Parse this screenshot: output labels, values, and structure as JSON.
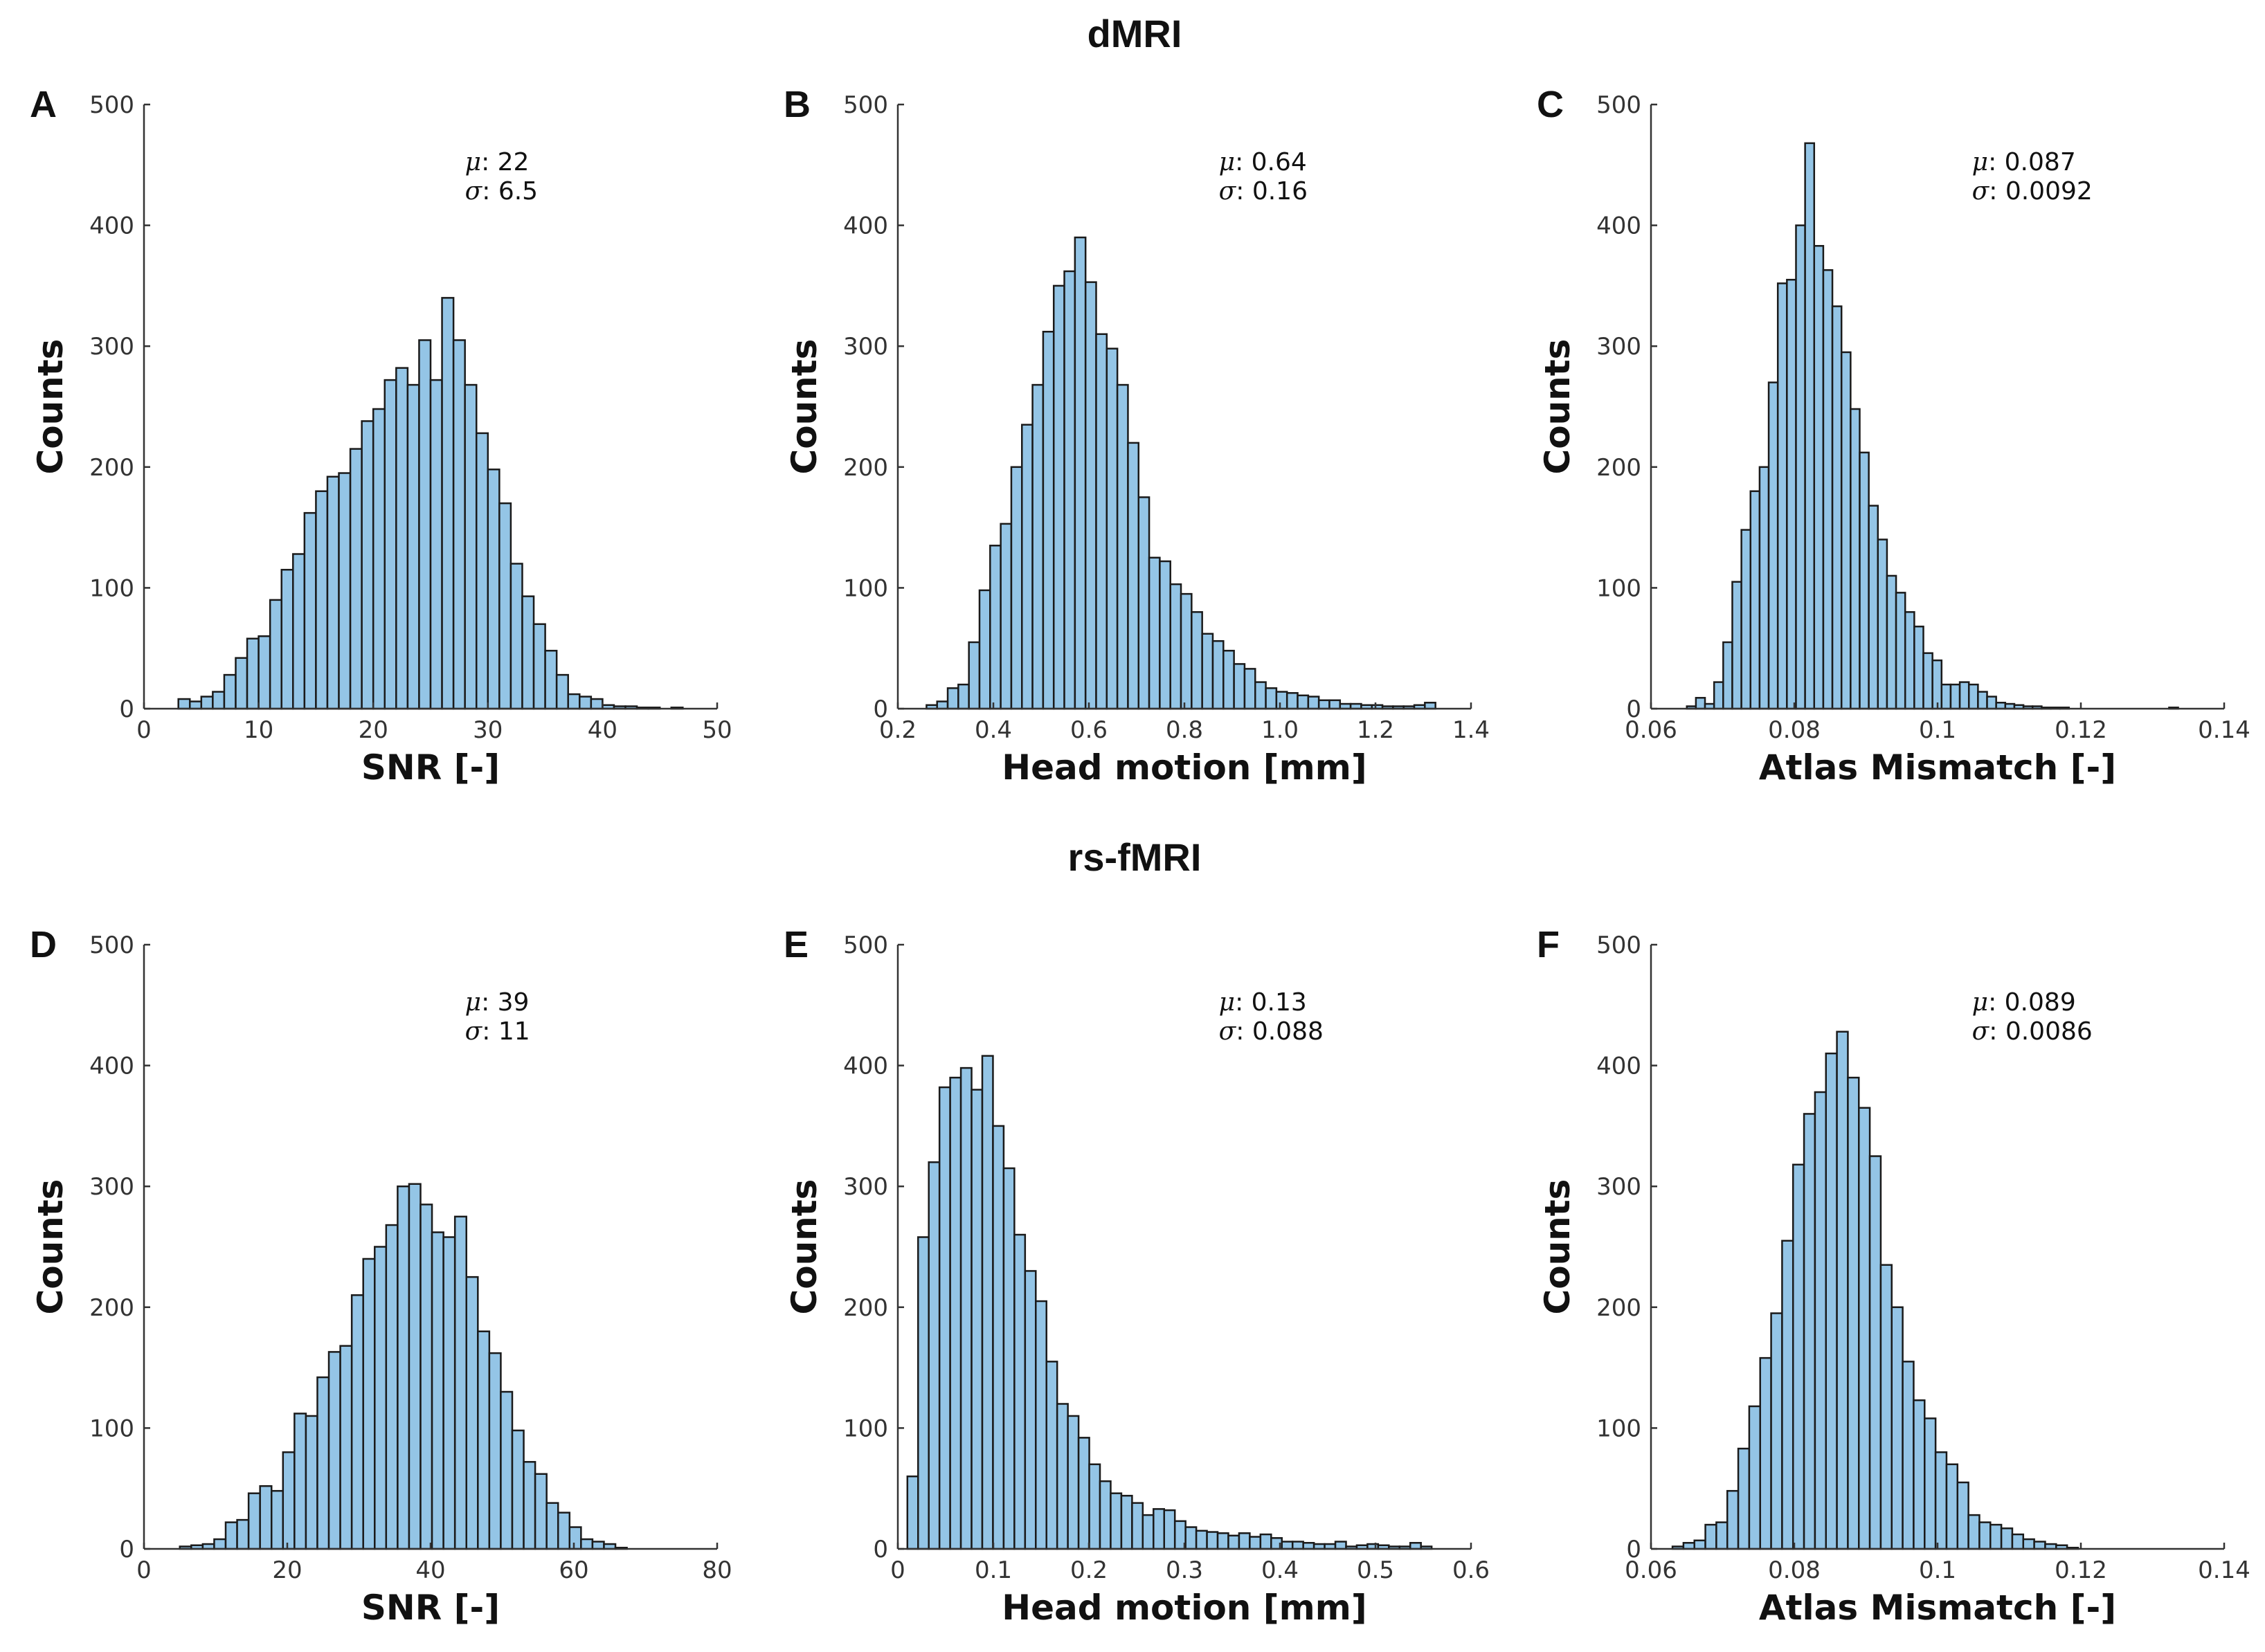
{
  "sections": {
    "top": "dMRI",
    "bottom": "rs-fMRI"
  },
  "chart_data": [
    {
      "id": "A",
      "type": "bar",
      "panel_label": "A",
      "xlabel": "SNR [-]",
      "ylabel": "Counts",
      "xlim": [
        0,
        50
      ],
      "ylim": [
        0,
        500
      ],
      "xticks": [
        0,
        10,
        20,
        30,
        40,
        50
      ],
      "xticklabels": [
        "0",
        "10",
        "20",
        "30",
        "40",
        "50"
      ],
      "yticks": [
        0,
        100,
        200,
        300,
        400,
        500
      ],
      "yticklabels": [
        "0",
        "100",
        "200",
        "300",
        "400",
        "500"
      ],
      "mu_label": "μ",
      "mu_value": "22",
      "sigma_label": "σ",
      "sigma_value": "6.5",
      "bin_start": 3,
      "bin_width": 1,
      "values": [
        8,
        6,
        10,
        14,
        28,
        42,
        58,
        60,
        90,
        115,
        128,
        162,
        180,
        192,
        195,
        215,
        238,
        248,
        272,
        282,
        268,
        305,
        272,
        340,
        305,
        268,
        228,
        198,
        170,
        120,
        93,
        70,
        48,
        28,
        12,
        10,
        8,
        3,
        2,
        2,
        1,
        1,
        0,
        1
      ]
    },
    {
      "id": "B",
      "type": "bar",
      "panel_label": "B",
      "xlabel": "Head motion [mm]",
      "ylabel": "Counts",
      "xlim": [
        0.2,
        1.4
      ],
      "ylim": [
        0,
        500
      ],
      "xticks": [
        0.2,
        0.4,
        0.6,
        0.8,
        1.0,
        1.2,
        1.4
      ],
      "xticklabels": [
        "0.2",
        "0.4",
        "0.6",
        "0.8",
        "1.0",
        "1.2",
        "1.4"
      ],
      "yticks": [
        0,
        100,
        200,
        300,
        400,
        500
      ],
      "yticklabels": [
        "0",
        "100",
        "200",
        "300",
        "400",
        "500"
      ],
      "mu_label": "μ",
      "mu_value": "0.64",
      "sigma_label": "σ",
      "sigma_value": "0.16",
      "bin_start": 0.26,
      "bin_width": 0.0222,
      "values": [
        3,
        6,
        17,
        20,
        55,
        98,
        135,
        153,
        200,
        235,
        268,
        312,
        350,
        362,
        390,
        353,
        310,
        298,
        268,
        220,
        175,
        125,
        122,
        103,
        95,
        80,
        62,
        56,
        48,
        37,
        33,
        22,
        17,
        14,
        13,
        11,
        10,
        7,
        7,
        4,
        4,
        3,
        3,
        2,
        2,
        2,
        3,
        5
      ]
    },
    {
      "id": "C",
      "type": "bar",
      "panel_label": "C",
      "xlabel": "Atlas Mismatch [-]",
      "ylabel": "Counts",
      "xlim": [
        0.06,
        0.14
      ],
      "ylim": [
        0,
        500
      ],
      "xticks": [
        0.06,
        0.08,
        0.1,
        0.12,
        0.14
      ],
      "xticklabels": [
        "0.06",
        "0.08",
        "0.1",
        "0.12",
        "0.14"
      ],
      "yticks": [
        0,
        100,
        200,
        300,
        400,
        500
      ],
      "yticklabels": [
        "0",
        "100",
        "200",
        "300",
        "400",
        "500"
      ],
      "mu_label": "μ",
      "mu_value": "0.087",
      "sigma_label": "σ",
      "sigma_value": "0.0092",
      "bin_start": 0.065,
      "bin_width": 0.00127,
      "values": [
        2,
        9,
        4,
        22,
        55,
        105,
        148,
        180,
        200,
        270,
        352,
        355,
        400,
        468,
        383,
        363,
        333,
        295,
        248,
        212,
        168,
        140,
        110,
        96,
        80,
        68,
        46,
        40,
        20,
        20,
        22,
        20,
        14,
        10,
        5,
        4,
        3,
        2,
        2,
        1,
        1,
        1,
        0,
        0,
        0,
        0,
        0,
        0,
        0,
        0,
        0,
        0,
        0,
        1
      ]
    },
    {
      "id": "D",
      "type": "bar",
      "panel_label": "D",
      "xlabel": "SNR [-]",
      "ylabel": "Counts",
      "xlim": [
        0,
        80
      ],
      "ylim": [
        0,
        500
      ],
      "xticks": [
        0,
        20,
        40,
        60,
        80
      ],
      "xticklabels": [
        "0",
        "20",
        "40",
        "60",
        "80"
      ],
      "yticks": [
        0,
        100,
        200,
        300,
        400,
        500
      ],
      "yticklabels": [
        "0",
        "100",
        "200",
        "300",
        "400",
        "500"
      ],
      "mu_label": "μ",
      "mu_value": "39",
      "sigma_label": "σ",
      "sigma_value": "11",
      "bin_start": 5,
      "bin_width": 1.6,
      "values": [
        2,
        3,
        4,
        8,
        22,
        24,
        46,
        52,
        48,
        80,
        112,
        110,
        142,
        163,
        168,
        210,
        240,
        250,
        268,
        300,
        302,
        285,
        262,
        258,
        275,
        225,
        180,
        162,
        130,
        98,
        72,
        62,
        38,
        30,
        18,
        8,
        6,
        4,
        1
      ]
    },
    {
      "id": "E",
      "type": "bar",
      "panel_label": "E",
      "xlabel": "Head motion [mm]",
      "ylabel": "Counts",
      "xlim": [
        0,
        0.6
      ],
      "ylim": [
        0,
        500
      ],
      "xticks": [
        0,
        0.1,
        0.2,
        0.3,
        0.4,
        0.5,
        0.6
      ],
      "xticklabels": [
        "0",
        "0.1",
        "0.2",
        "0.3",
        "0.4",
        "0.5",
        "0.6"
      ],
      "yticks": [
        0,
        100,
        200,
        300,
        400,
        500
      ],
      "yticklabels": [
        "0",
        "100",
        "200",
        "300",
        "400",
        "500"
      ],
      "mu_label": "μ",
      "mu_value": "0.13",
      "sigma_label": "σ",
      "sigma_value": "0.088",
      "bin_start": 0.01,
      "bin_width": 0.0112,
      "values": [
        60,
        258,
        320,
        382,
        390,
        398,
        380,
        408,
        350,
        315,
        260,
        230,
        205,
        155,
        120,
        110,
        92,
        70,
        56,
        46,
        44,
        38,
        28,
        33,
        32,
        23,
        18,
        15,
        14,
        13,
        11,
        13,
        10,
        12,
        9,
        6,
        6,
        5,
        4,
        4,
        6,
        2,
        3,
        4,
        3,
        2,
        2,
        5,
        2,
        0
      ]
    },
    {
      "id": "F",
      "type": "bar",
      "panel_label": "F",
      "xlabel": "Atlas Mismatch [-]",
      "ylabel": "Counts",
      "xlim": [
        0.06,
        0.14
      ],
      "ylim": [
        0,
        500
      ],
      "xticks": [
        0.06,
        0.08,
        0.1,
        0.12,
        0.14
      ],
      "xticklabels": [
        "0.06",
        "0.08",
        "0.1",
        "0.12",
        "0.14"
      ],
      "yticks": [
        0,
        100,
        200,
        300,
        400,
        500
      ],
      "yticklabels": [
        "0",
        "100",
        "200",
        "300",
        "400",
        "500"
      ],
      "mu_label": "μ",
      "mu_value": "0.089",
      "sigma_label": "σ",
      "sigma_value": "0.0086",
      "bin_start": 0.063,
      "bin_width": 0.00153,
      "values": [
        2,
        5,
        7,
        20,
        22,
        48,
        83,
        118,
        158,
        195,
        255,
        318,
        360,
        378,
        410,
        428,
        390,
        365,
        325,
        235,
        200,
        155,
        123,
        108,
        80,
        70,
        55,
        28,
        22,
        20,
        17,
        12,
        8,
        6,
        4,
        3,
        1
      ]
    }
  ]
}
